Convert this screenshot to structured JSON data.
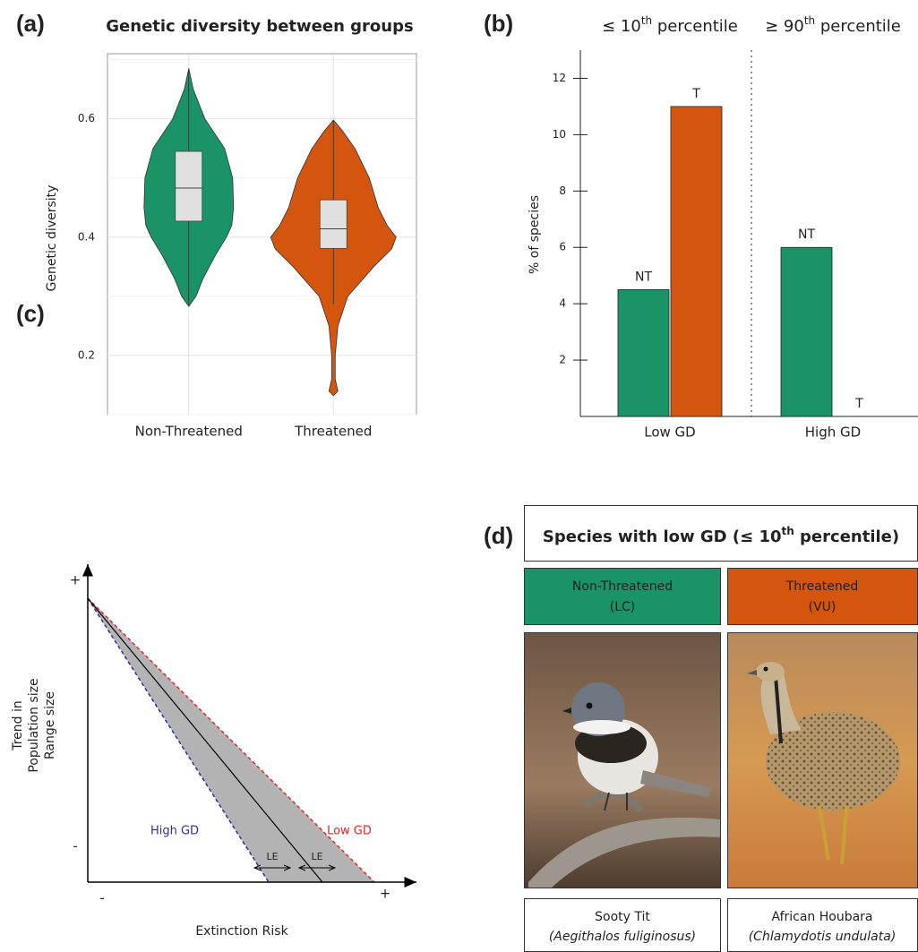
{
  "panels": {
    "a": "(a)",
    "b": "(b)",
    "c": "(c)",
    "d": "(d)"
  },
  "chart_data": [
    {
      "type": "violin",
      "title": "Genetic diversity between groups",
      "y_label": "Genetic diversity",
      "categories": [
        "Non-Threatened",
        "Threatened"
      ],
      "series": [
        {
          "name": "Non-Threatened",
          "color": "#1a9466",
          "density_y": [
            0.283,
            0.3,
            0.33,
            0.37,
            0.4,
            0.42,
            0.45,
            0.5,
            0.55,
            0.6,
            0.65,
            0.685
          ],
          "density": [
            0,
            0.16,
            0.32,
            0.6,
            0.84,
            0.96,
            1,
            0.98,
            0.8,
            0.36,
            0.1,
            0
          ],
          "whisker_low": 0.283,
          "q1": 0.427,
          "median": 0.483,
          "q3": 0.545,
          "whisker_high": 0.682
        },
        {
          "name": "Threatened",
          "color": "#d4560e",
          "density_y": [
            0.132,
            0.14,
            0.16,
            0.2,
            0.25,
            0.3,
            0.35,
            0.38,
            0.4,
            0.42,
            0.45,
            0.5,
            0.55,
            0.58,
            0.598
          ],
          "density": [
            0,
            0.1,
            0.04,
            0.04,
            0.1,
            0.32,
            0.9,
            1.3,
            1.4,
            1.2,
            1.0,
            0.8,
            0.48,
            0.2,
            0
          ],
          "whisker_low": 0.287,
          "q1": 0.381,
          "median": 0.414,
          "q3": 0.463,
          "whisker_high": 0.598
        }
      ],
      "box_color": "#e0e0e0",
      "ylim": [
        0.1,
        0.71
      ],
      "yticks": [
        0.2,
        0.4,
        0.6
      ],
      "minor_yticks": [
        0.1,
        0.3,
        0.5,
        0.7
      ],
      "grid": true
    },
    {
      "type": "bar",
      "y_label": "% of species",
      "categories": [
        "Low GD",
        "High GD"
      ],
      "group_labels": [
        {
          "text": "≤ 10",
          "sup": "th",
          "rest": " percentile"
        },
        {
          "text": "≥ 90",
          "sup": "th",
          "rest": " percentile"
        }
      ],
      "series": [
        {
          "name": "NT",
          "color": "#1a9466",
          "values": [
            4.5,
            6
          ]
        },
        {
          "name": "T",
          "color": "#d4560e",
          "values": [
            11,
            0
          ]
        }
      ],
      "ylim": [
        0,
        13
      ],
      "yticks": [
        2,
        4,
        6,
        8,
        10,
        12
      ]
    }
  ],
  "diagram": {
    "y_axis_label": [
      "Trend in",
      "Population size",
      "Range size"
    ],
    "x_axis_label": "Extinction Risk",
    "y_plus": "+",
    "y_minus": "-",
    "x_minus": "-",
    "x_plus": "+",
    "high_gd": "High GD",
    "low_gd": "Low GD",
    "le": [
      "LE",
      "LE"
    ]
  },
  "species_panel": {
    "title": {
      "text": "Species with low GD (≤ 10",
      "sup": "th",
      "rest": " percentile)"
    },
    "groups": [
      {
        "status": "Non-Threatened",
        "category": "(LC)",
        "color": "#1a9466",
        "common_name": "Sooty Tit",
        "scientific_name": "(Aegithalos fuliginosus)"
      },
      {
        "status": "Threatened",
        "category": "(VU)",
        "color": "#d4560e",
        "common_name": "African Houbara",
        "scientific_name": "(Chlamydotis undulata)"
      }
    ]
  }
}
